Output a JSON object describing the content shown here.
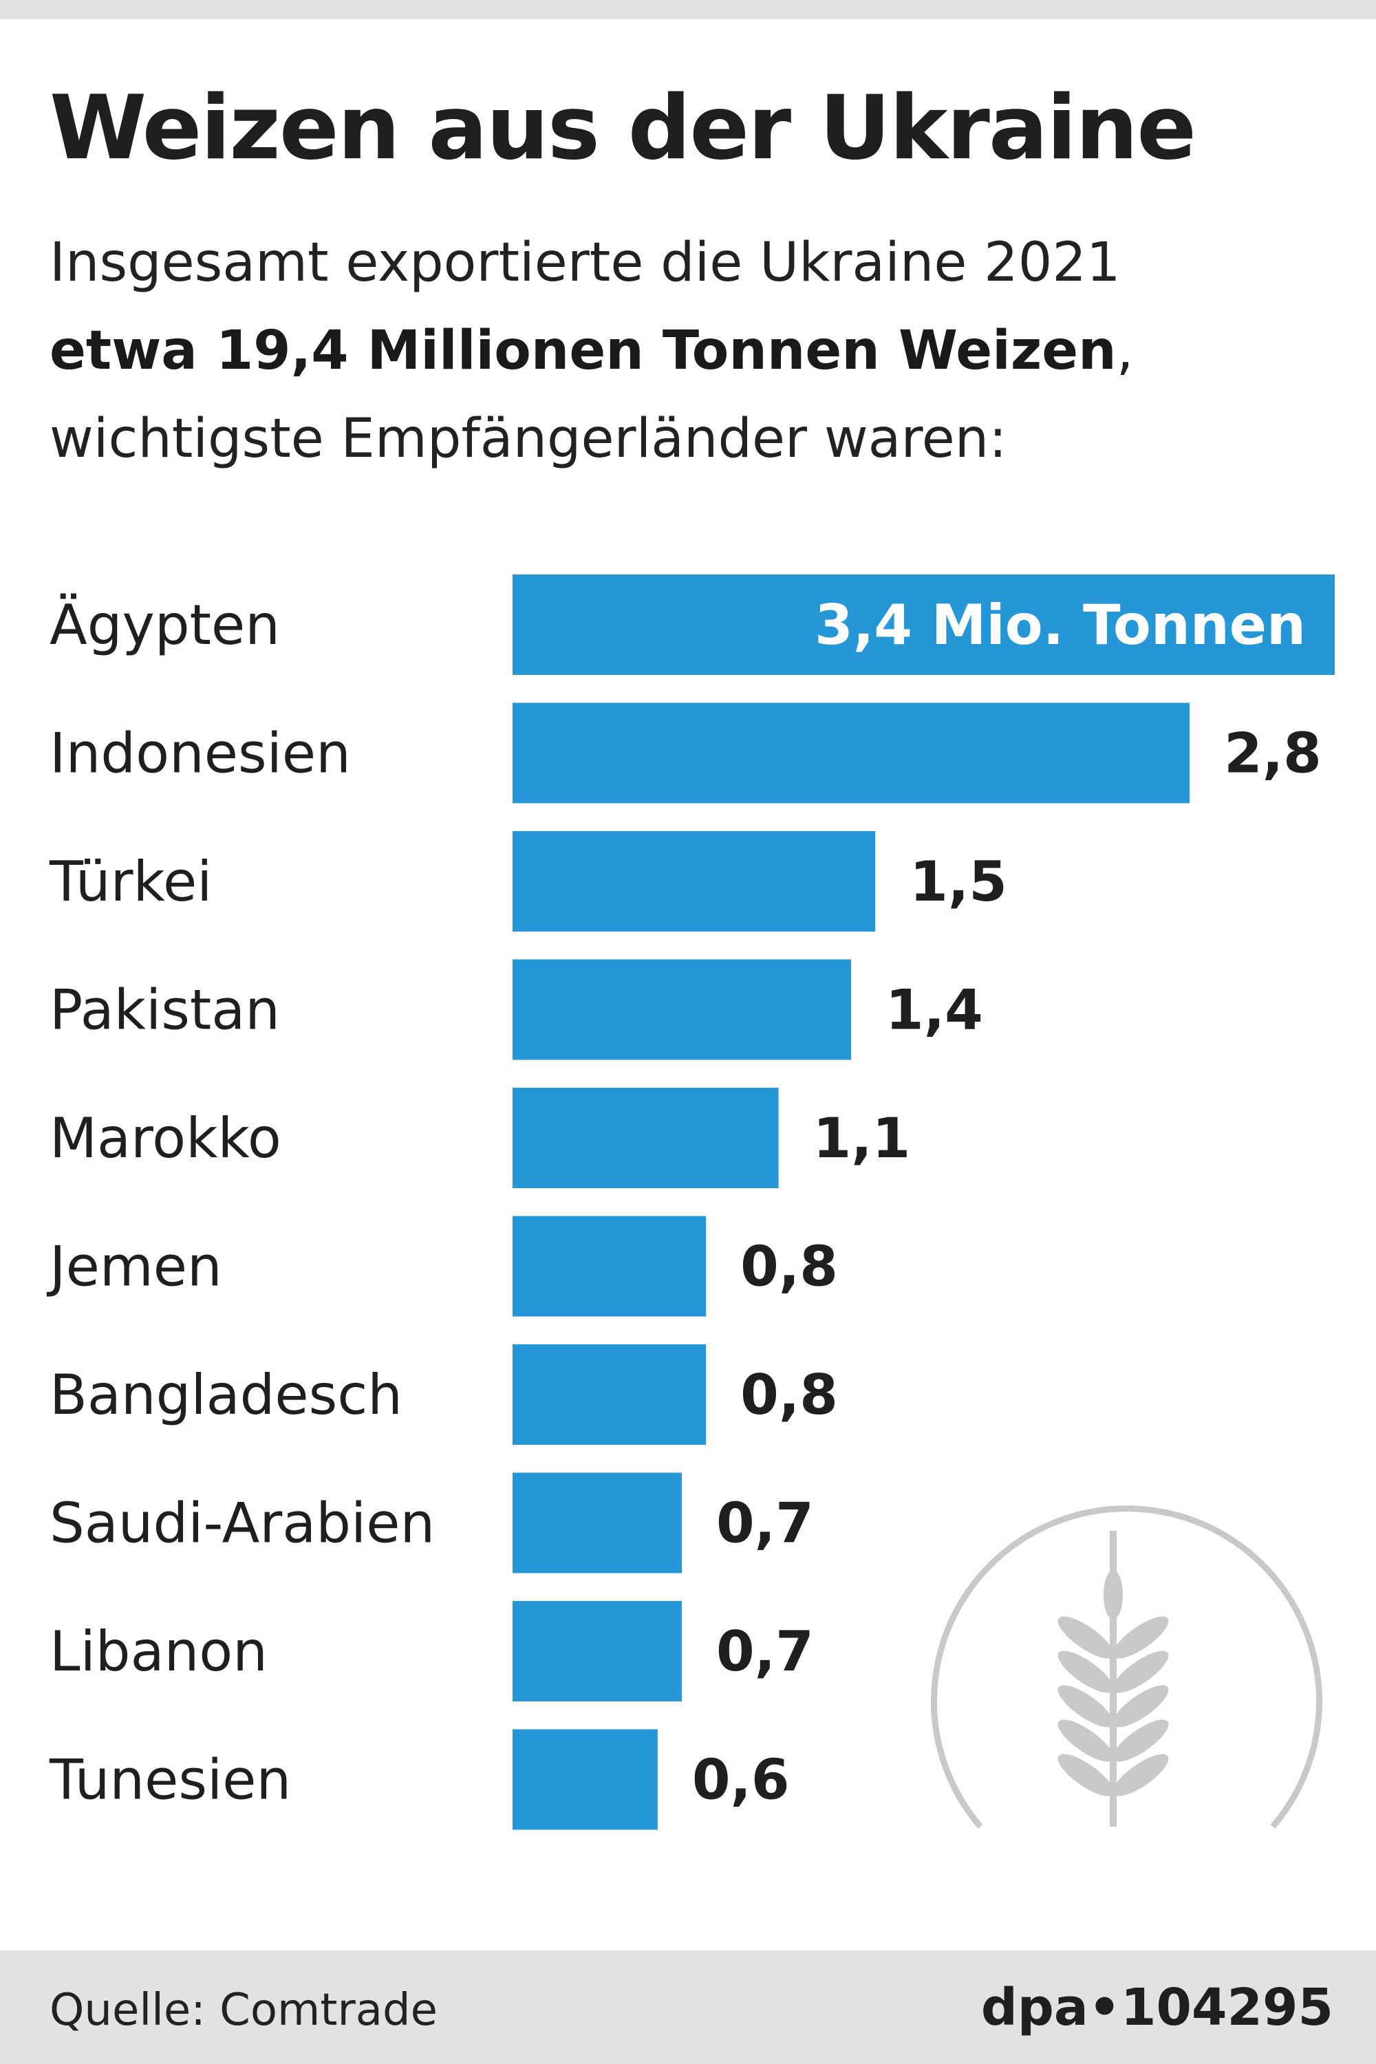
{
  "header": {
    "title": "Weizen aus der Ukraine",
    "subtitle_line1": "Insgesamt exportierte die Ukraine 2021",
    "subtitle_bold": "etwa 19,4 Millionen Tonnen Weizen",
    "subtitle_comma": ",",
    "subtitle_line3": "wichtigste Empfängerländer waren:"
  },
  "chart_data": {
    "type": "bar",
    "orientation": "horizontal",
    "categories": [
      "Ägypten",
      "Indonesien",
      "Türkei",
      "Pakistan",
      "Marokko",
      "Jemen",
      "Bangladesch",
      "Saudi-Arabien",
      "Libanon",
      "Tunesien"
    ],
    "values": [
      3.4,
      2.8,
      1.5,
      1.4,
      1.1,
      0.8,
      0.8,
      0.7,
      0.7,
      0.6
    ],
    "value_labels": [
      "3,4 Mio. Tonnen",
      "2,8",
      "1,5",
      "1,4",
      "1,1",
      "0,8",
      "0,8",
      "0,7",
      "0,7",
      "0,6"
    ],
    "bar_color": "#2596d6",
    "xlim": [
      0,
      3.4
    ],
    "grid": false
  },
  "footer": {
    "source": "Quelle: Comtrade",
    "credit": "dpa•104295"
  },
  "decoration": {
    "icon": "wheat-icon",
    "icon_color": "#c9c9c9"
  }
}
